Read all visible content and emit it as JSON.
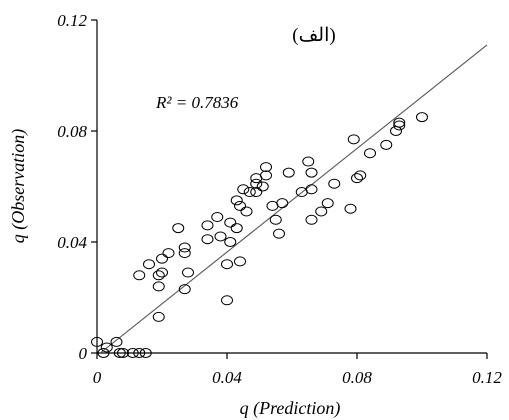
{
  "chart_data": {
    "type": "scatter",
    "title": "(الف)",
    "xlabel": "q (Prediction)",
    "ylabel": "q (Observation)",
    "xlim": [
      0,
      0.12
    ],
    "ylim": [
      0,
      0.12
    ],
    "xticks": [
      "0",
      "0.04",
      "0.08",
      "0.12"
    ],
    "yticks": [
      "0",
      "0.04",
      "0.08",
      "0.12"
    ],
    "xtick_values": [
      0,
      0.04,
      0.08,
      0.12
    ],
    "ytick_values": [
      0,
      0.04,
      0.08,
      0.12
    ],
    "annotation": "R² = 0.7836",
    "marker": "open-circle",
    "grid": false,
    "trendline": {
      "type": "linear",
      "x": [
        0.001,
        0.12
      ],
      "y": [
        0.0,
        0.111
      ]
    },
    "series": [
      {
        "points": [
          [
            0.0,
            0.004
          ],
          [
            0.002,
            0.0
          ],
          [
            0.003,
            0.002
          ],
          [
            0.006,
            0.004
          ],
          [
            0.007,
            0.0
          ],
          [
            0.008,
            0.0
          ],
          [
            0.011,
            0.0
          ],
          [
            0.013,
            0.0
          ],
          [
            0.015,
            0.0
          ],
          [
            0.019,
            0.013
          ],
          [
            0.019,
            0.024
          ],
          [
            0.02,
            0.029
          ],
          [
            0.019,
            0.028
          ],
          [
            0.013,
            0.028
          ],
          [
            0.016,
            0.032
          ],
          [
            0.02,
            0.034
          ],
          [
            0.022,
            0.036
          ],
          [
            0.027,
            0.023
          ],
          [
            0.028,
            0.029
          ],
          [
            0.027,
            0.036
          ],
          [
            0.027,
            0.038
          ],
          [
            0.025,
            0.045
          ],
          [
            0.04,
            0.019
          ],
          [
            0.04,
            0.032
          ],
          [
            0.044,
            0.033
          ],
          [
            0.038,
            0.042
          ],
          [
            0.041,
            0.04
          ],
          [
            0.043,
            0.045
          ],
          [
            0.041,
            0.047
          ],
          [
            0.034,
            0.041
          ],
          [
            0.034,
            0.046
          ],
          [
            0.037,
            0.049
          ],
          [
            0.043,
            0.055
          ],
          [
            0.045,
            0.059
          ],
          [
            0.044,
            0.053
          ],
          [
            0.046,
            0.051
          ],
          [
            0.047,
            0.058
          ],
          [
            0.049,
            0.058
          ],
          [
            0.049,
            0.061
          ],
          [
            0.049,
            0.063
          ],
          [
            0.051,
            0.06
          ],
          [
            0.052,
            0.064
          ],
          [
            0.052,
            0.067
          ],
          [
            0.054,
            0.053
          ],
          [
            0.055,
            0.048
          ],
          [
            0.056,
            0.043
          ],
          [
            0.057,
            0.054
          ],
          [
            0.059,
            0.065
          ],
          [
            0.063,
            0.058
          ],
          [
            0.065,
            0.069
          ],
          [
            0.066,
            0.065
          ],
          [
            0.066,
            0.059
          ],
          [
            0.066,
            0.048
          ],
          [
            0.069,
            0.051
          ],
          [
            0.071,
            0.054
          ],
          [
            0.073,
            0.061
          ],
          [
            0.078,
            0.052
          ],
          [
            0.079,
            0.077
          ],
          [
            0.08,
            0.063
          ],
          [
            0.081,
            0.064
          ],
          [
            0.084,
            0.072
          ],
          [
            0.089,
            0.075
          ],
          [
            0.092,
            0.08
          ],
          [
            0.093,
            0.083
          ],
          [
            0.093,
            0.082
          ],
          [
            0.1,
            0.085
          ]
        ]
      }
    ]
  }
}
